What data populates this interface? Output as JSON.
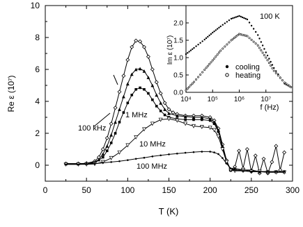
{
  "chart_data": [
    {
      "type": "line",
      "xlabel": "T (K)",
      "ylabel": "Re ε (10⁷)",
      "xlim": [
        0,
        300
      ],
      "ylim": [
        -1,
        10
      ],
      "xticks": [
        0,
        50,
        100,
        150,
        200,
        250,
        300
      ],
      "yticks": [
        0,
        2,
        4,
        6,
        8,
        10
      ],
      "series": [
        {
          "name": "100 kHz",
          "marker": "diamond",
          "points": [
            [
              25,
              0.1
            ],
            [
              40,
              0.1
            ],
            [
              50,
              0.12
            ],
            [
              60,
              0.25
            ],
            [
              65,
              0.5
            ],
            [
              70,
              1
            ],
            [
              75,
              1.7
            ],
            [
              80,
              2.6
            ],
            [
              85,
              3.6
            ],
            [
              90,
              4.6
            ],
            [
              95,
              5.6
            ],
            [
              100,
              6.6
            ],
            [
              105,
              7.4
            ],
            [
              110,
              7.8
            ],
            [
              115,
              7.75
            ],
            [
              120,
              7.4
            ],
            [
              125,
              6.8
            ],
            [
              130,
              6
            ],
            [
              135,
              5.2
            ],
            [
              140,
              4.5
            ],
            [
              145,
              3.9
            ],
            [
              150,
              3.5
            ],
            [
              155,
              3.3
            ],
            [
              160,
              3.2
            ],
            [
              170,
              3.1
            ],
            [
              180,
              3.1
            ],
            [
              190,
              3.1
            ],
            [
              200,
              3
            ],
            [
              205,
              2.8
            ],
            [
              210,
              2.3
            ],
            [
              215,
              1.3
            ],
            [
              220,
              0.3
            ],
            [
              225,
              -0.3
            ],
            [
              230,
              -0.1
            ],
            [
              235,
              0.9
            ],
            [
              240,
              -0.2
            ],
            [
              245,
              1
            ],
            [
              250,
              -0.4
            ],
            [
              255,
              0.6
            ],
            [
              260,
              -0.5
            ],
            [
              265,
              0.4
            ],
            [
              270,
              -0.5
            ],
            [
              275,
              0.2
            ],
            [
              280,
              1.2
            ],
            [
              285,
              -0.3
            ],
            [
              290,
              0.8
            ]
          ]
        },
        {
          "name": "1 MHz",
          "marker": "triangle",
          "points": [
            [
              25,
              0.1
            ],
            [
              40,
              0.1
            ],
            [
              50,
              0.12
            ],
            [
              60,
              0.2
            ],
            [
              65,
              0.35
            ],
            [
              70,
              0.7
            ],
            [
              75,
              1.2
            ],
            [
              80,
              1.9
            ],
            [
              85,
              2.7
            ],
            [
              90,
              3.5
            ],
            [
              95,
              4.3
            ],
            [
              100,
              5.1
            ],
            [
              105,
              5.7
            ],
            [
              110,
              6
            ],
            [
              115,
              6.05
            ],
            [
              120,
              5.9
            ],
            [
              125,
              5.5
            ],
            [
              130,
              5
            ],
            [
              135,
              4.4
            ],
            [
              140,
              3.9
            ],
            [
              145,
              3.5
            ],
            [
              150,
              3.25
            ],
            [
              160,
              3.1
            ],
            [
              170,
              3.05
            ],
            [
              180,
              3
            ],
            [
              190,
              3
            ],
            [
              200,
              2.9
            ],
            [
              205,
              2.7
            ],
            [
              210,
              2.2
            ],
            [
              215,
              1.2
            ],
            [
              220,
              0.2
            ],
            [
              225,
              -0.3
            ],
            [
              230,
              -0.2
            ],
            [
              240,
              -0.3
            ],
            [
              250,
              -0.3
            ],
            [
              260,
              -0.4
            ],
            [
              270,
              -0.4
            ],
            [
              280,
              -0.4
            ],
            [
              290,
              -0.4
            ]
          ]
        },
        {
          "name": "",
          "marker": "square",
          "points": [
            [
              25,
              0.1
            ],
            [
              40,
              0.1
            ],
            [
              50,
              0.1
            ],
            [
              60,
              0.15
            ],
            [
              70,
              0.5
            ],
            [
              75,
              0.9
            ],
            [
              80,
              1.4
            ],
            [
              85,
              2
            ],
            [
              90,
              2.7
            ],
            [
              95,
              3.3
            ],
            [
              100,
              3.9
            ],
            [
              105,
              4.4
            ],
            [
              110,
              4.75
            ],
            [
              115,
              4.85
            ],
            [
              120,
              4.75
            ],
            [
              125,
              4.5
            ],
            [
              130,
              4.1
            ],
            [
              135,
              3.7
            ],
            [
              140,
              3.4
            ],
            [
              145,
              3.15
            ],
            [
              150,
              3
            ],
            [
              160,
              2.9
            ],
            [
              170,
              2.85
            ],
            [
              180,
              2.85
            ],
            [
              190,
              2.85
            ],
            [
              200,
              2.8
            ],
            [
              205,
              2.6
            ],
            [
              210,
              2.1
            ],
            [
              215,
              1.1
            ],
            [
              220,
              0.2
            ],
            [
              225,
              -0.3
            ],
            [
              230,
              -0.3
            ],
            [
              240,
              -0.3
            ],
            [
              250,
              -0.35
            ],
            [
              260,
              -0.4
            ],
            [
              270,
              -0.4
            ],
            [
              280,
              -0.4
            ],
            [
              290,
              -0.4
            ]
          ]
        },
        {
          "name": "10 MHz",
          "marker": "triangle-down",
          "points": [
            [
              25,
              0.05
            ],
            [
              40,
              0.05
            ],
            [
              50,
              0.05
            ],
            [
              60,
              0.08
            ],
            [
              70,
              0.2
            ],
            [
              80,
              0.45
            ],
            [
              90,
              0.8
            ],
            [
              100,
              1.25
            ],
            [
              110,
              1.75
            ],
            [
              120,
              2.25
            ],
            [
              130,
              2.6
            ],
            [
              140,
              2.85
            ],
            [
              150,
              2.9
            ],
            [
              160,
              2.8
            ],
            [
              170,
              2.6
            ],
            [
              180,
              2.45
            ],
            [
              190,
              2.4
            ],
            [
              200,
              2.35
            ],
            [
              205,
              2.2
            ],
            [
              210,
              1.8
            ],
            [
              215,
              1
            ],
            [
              220,
              0.2
            ],
            [
              225,
              -0.3
            ],
            [
              230,
              -0.35
            ],
            [
              240,
              -0.35
            ],
            [
              250,
              -0.4
            ],
            [
              260,
              -0.4
            ],
            [
              270,
              -0.45
            ],
            [
              280,
              -0.45
            ],
            [
              290,
              -0.45
            ]
          ]
        },
        {
          "name": "100 MHz",
          "marker": "dot",
          "points": [
            [
              25,
              0.05
            ],
            [
              40,
              0.05
            ],
            [
              50,
              0.08
            ],
            [
              60,
              0.1
            ],
            [
              70,
              0.15
            ],
            [
              80,
              0.2
            ],
            [
              90,
              0.25
            ],
            [
              100,
              0.32
            ],
            [
              110,
              0.4
            ],
            [
              120,
              0.47
            ],
            [
              130,
              0.55
            ],
            [
              140,
              0.62
            ],
            [
              150,
              0.68
            ],
            [
              160,
              0.73
            ],
            [
              170,
              0.78
            ],
            [
              180,
              0.82
            ],
            [
              190,
              0.85
            ],
            [
              200,
              0.85
            ],
            [
              205,
              0.8
            ],
            [
              210,
              0.7
            ],
            [
              215,
              0.45
            ],
            [
              220,
              0.1
            ],
            [
              225,
              -0.2
            ],
            [
              230,
              -0.3
            ],
            [
              240,
              -0.35
            ],
            [
              250,
              -0.4
            ],
            [
              260,
              -0.4
            ],
            [
              270,
              -0.4
            ],
            [
              280,
              -0.4
            ],
            [
              290,
              -0.4
            ]
          ]
        }
      ],
      "annotations": [
        "100 kHz",
        "1 MHz",
        "10 MHz",
        "100 MHz"
      ]
    },
    {
      "type": "scatter",
      "xlabel": "f (Hz)",
      "ylabel": "Im ε (10⁷)",
      "xscale": "log",
      "xlim": [
        10000,
        100000000
      ],
      "ylim": [
        0,
        2.5
      ],
      "xticks": [
        "10⁴",
        "10⁵",
        "10⁶",
        "10⁷"
      ],
      "yticks": [
        "0.0",
        "0.5",
        "1.0",
        "1.5",
        "2.0"
      ],
      "annotation": "100 K",
      "series": [
        {
          "name": "cooling",
          "marker": "filled",
          "points": [
            [
              10000,
              1.1
            ],
            [
              20000,
              1.28
            ],
            [
              50000,
              1.52
            ],
            [
              100000,
              1.72
            ],
            [
              200000,
              1.9
            ],
            [
              500000,
              2.12
            ],
            [
              1000000,
              2.2
            ],
            [
              2000000,
              2.1
            ],
            [
              5000000,
              1.65
            ],
            [
              10000000,
              1.15
            ],
            [
              20000000,
              0.7
            ],
            [
              50000000,
              0.25
            ],
            [
              100000000,
              0.12
            ]
          ]
        },
        {
          "name": "heating",
          "marker": "open",
          "points": [
            [
              10000,
              0.06
            ],
            [
              20000,
              0.3
            ],
            [
              50000,
              0.65
            ],
            [
              100000,
              0.92
            ],
            [
              200000,
              1.2
            ],
            [
              500000,
              1.5
            ],
            [
              1000000,
              1.68
            ],
            [
              2000000,
              1.62
            ],
            [
              5000000,
              1.35
            ],
            [
              10000000,
              1
            ],
            [
              20000000,
              0.62
            ],
            [
              50000000,
              0.28
            ],
            [
              100000000,
              0.12
            ]
          ]
        }
      ]
    }
  ]
}
